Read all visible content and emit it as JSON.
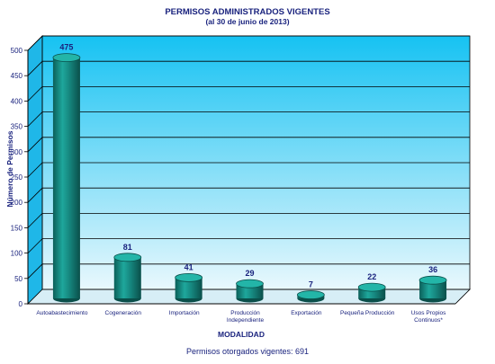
{
  "chart_data": {
    "type": "bar",
    "title": "PERMISOS ADMINISTRADOS VIGENTES",
    "subtitle": "(al 30 de junio de 2013)",
    "xlabel": "MODALIDAD",
    "ylabel": "Número de Permisos",
    "ylim": [
      0,
      500
    ],
    "yticks": [
      0,
      50,
      100,
      150,
      200,
      250,
      300,
      350,
      400,
      450,
      500
    ],
    "categories": [
      [
        "Autoabastecimiento"
      ],
      [
        "Cogeneración"
      ],
      [
        "Importación"
      ],
      [
        "Producción",
        "Independiente"
      ],
      [
        "Exportación"
      ],
      [
        "Pequeña Producción"
      ],
      [
        "Usos Propios",
        "Continuos*"
      ]
    ],
    "values": [
      475,
      81,
      41,
      29,
      7,
      22,
      36
    ],
    "bar_color": "#15877f",
    "grid": true,
    "background_top": "#16c2f2",
    "background_bottom": "#e9f8fd"
  },
  "footer": "Permisos otorgados vigentes: 691"
}
